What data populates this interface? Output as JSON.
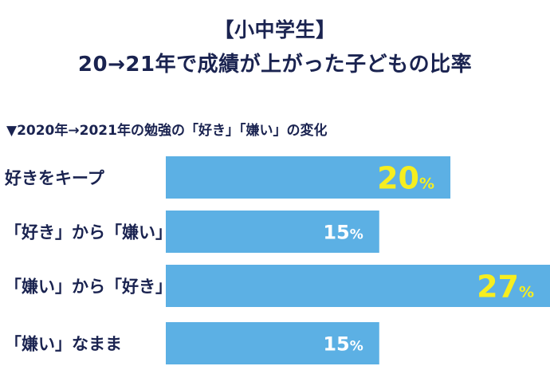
{
  "title_line1": "【小中学生】",
  "title_line2": "20→21年で成績が上がった子どもの比率",
  "subtitle": "▼2020年→2021年の勉強の「好き」「嫌い」の変化",
  "chart_data": {
    "type": "bar",
    "orientation": "horizontal",
    "categories": [
      "好きをキープ",
      "「好き」から「嫌い」",
      "「嫌い」から「好き」",
      "「嫌い」なまま"
    ],
    "values": [
      20,
      15,
      27,
      15
    ],
    "unit": "%",
    "xlim": [
      0,
      27
    ],
    "grid": false,
    "legend": "none",
    "bar_color": "#5cb0e4",
    "highlight_color": "#f6ee1f",
    "label_color": "#ffffff",
    "highlighted": [
      true,
      false,
      true,
      false
    ]
  }
}
